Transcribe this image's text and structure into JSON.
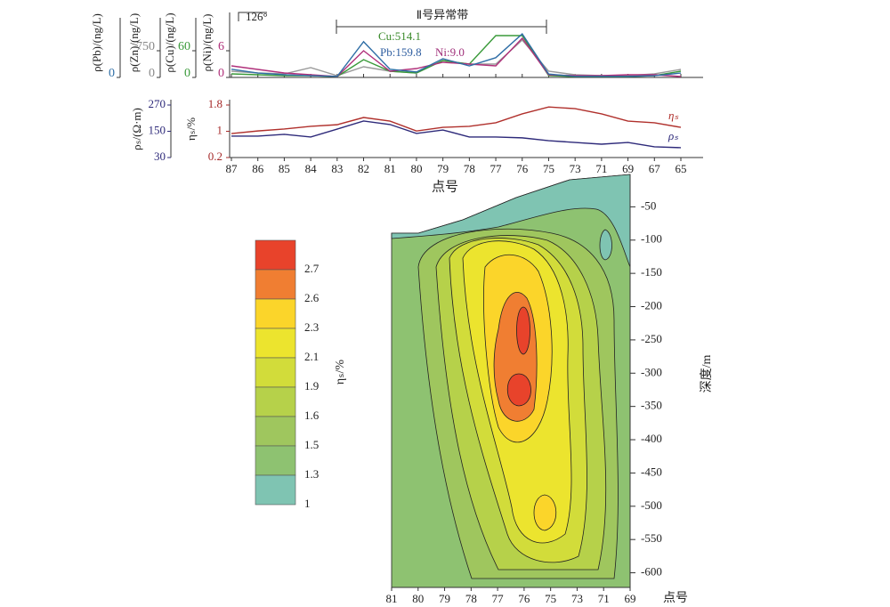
{
  "chart_data": [
    {
      "type": "line",
      "xlabel": "点号",
      "categories": [
        "87",
        "86",
        "85",
        "84",
        "83",
        "82",
        "81",
        "80",
        "79",
        "78",
        "77",
        "76",
        "75",
        "73",
        "71",
        "69",
        "67",
        "65"
      ],
      "ylabel": "ηₛ/%",
      "ylim": [
        0.2,
        1.8
      ],
      "yticks": [
        0.2,
        1.0,
        1.8
      ],
      "ycolor": "#a52a2a",
      "y2label": "ρₛ/(Ω·m)",
      "y2lim": [
        30,
        270
      ],
      "y2ticks": [
        30,
        150,
        270
      ],
      "y2color": "#2e2a7a",
      "series": [
        {
          "name": "ηₛ",
          "color": "#b0302c",
          "values": [
            0.93,
            1.01,
            1.07,
            1.15,
            1.2,
            1.42,
            1.31,
            1.01,
            1.12,
            1.15,
            1.26,
            1.53,
            1.74,
            1.69,
            1.53,
            1.31,
            1.26,
            1.12
          ]
        },
        {
          "name": "ρₛ",
          "color": "#2e2a7a",
          "axis": "y2",
          "values": [
            128,
            128,
            136,
            124,
            160,
            197,
            181,
            140,
            156,
            124,
            124,
            120,
            107,
            99,
            91,
            99,
            79,
            75
          ]
        }
      ]
    },
    {
      "type": "multiline",
      "annotations": [
        "126°",
        "Ⅱ号异常带",
        "Cu:514.1",
        "Pb:159.8",
        "Ni:9.0"
      ],
      "axes": [
        {
          "label": "ρ(Pb)/(ng/L)",
          "ylim": [
            0,
            170
          ],
          "yticks": [
            0
          ],
          "color": "#2f6ea6"
        },
        {
          "label": "ρ(Zn)/(ng/L)",
          "ylim": [
            0,
            1625
          ],
          "yticks": [
            0,
            750
          ],
          "color": "#888888"
        },
        {
          "label": "ρ(Cu)/(ng/L)",
          "ylim": [
            0,
            130
          ],
          "yticks": [
            0,
            60
          ],
          "color": "#3a9a3a"
        },
        {
          "label": "ρ(Ni)/(ng/L)",
          "ylim": [
            0,
            13
          ],
          "yticks": [
            0,
            6
          ],
          "color": "#b0307a"
        }
      ],
      "series": [
        {
          "axis": 1,
          "color": "#9a9a9a",
          "values": [
            175,
            125,
            100,
            275,
            50,
            300,
            175,
            125,
            475,
            375,
            375,
            1050,
            175,
            75,
            50,
            50,
            100,
            225
          ]
        },
        {
          "axis": 2,
          "color": "#3a9a3a",
          "values": [
            8,
            6,
            4,
            4,
            2,
            40,
            14,
            10,
            38,
            30,
            94,
            94,
            4,
            2,
            2,
            2,
            4,
            14
          ]
        },
        {
          "axis": 3,
          "color": "#b0307a",
          "values": [
            2.6,
            1.8,
            1.0,
            0.6,
            0.2,
            6.0,
            1.4,
            2.0,
            3.4,
            3.0,
            2.6,
            8.8,
            0.6,
            0.4,
            0.4,
            0.6,
            0.6,
            0.2
          ]
        },
        {
          "axis": 0,
          "color": "#2f6ea6",
          "values": [
            24,
            13,
            8,
            5,
            3,
            105,
            24,
            16,
            55,
            34,
            58,
            128,
            10,
            3,
            3,
            3,
            5,
            13
          ]
        }
      ]
    },
    {
      "type": "contour",
      "xlabel": "点号",
      "ylabel": "深度/m",
      "categories": [
        "81",
        "80",
        "79",
        "78",
        "77",
        "76",
        "75",
        "73",
        "71",
        "69"
      ],
      "ylim": [
        0,
        -622
      ],
      "yticks": [
        -50,
        -100,
        -150,
        -200,
        -250,
        -300,
        -350,
        -400,
        -450,
        -500,
        -550,
        -600
      ],
      "colorbar": {
        "label": "ηₛ/%",
        "levels": [
          2.7,
          2.6,
          2.3,
          2.1,
          1.9,
          1.6,
          1.5,
          1.3,
          1
        ],
        "colors": [
          "#e8432b",
          "#f07e32",
          "#fbd52a",
          "#ece42e",
          "#d2dc3a",
          "#b6d14a",
          "#9fc65e",
          "#8ec271",
          "#7fc4b2"
        ]
      }
    }
  ]
}
